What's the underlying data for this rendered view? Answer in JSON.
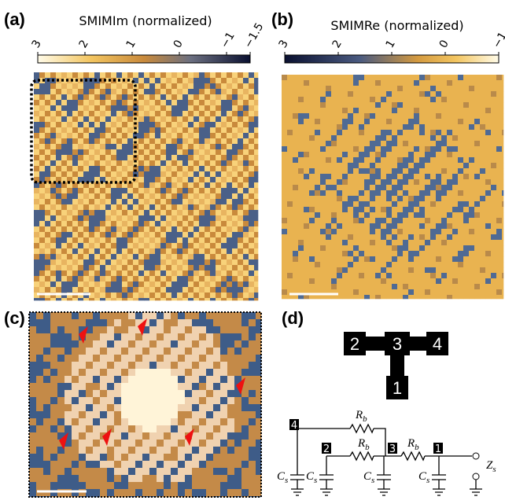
{
  "panels": {
    "a": {
      "label": "(a)",
      "colorbar": {
        "title": "SMIMIm (normalized)",
        "range": [
          3,
          -1.5
        ],
        "ticks": [
          3,
          2,
          1,
          0,
          {
            "value": -1,
            "label": "−1"
          },
          {
            "value": -1.5,
            "label": "−1.5"
          }
        ]
      }
    },
    "b": {
      "label": "(b)",
      "colorbar": {
        "title": "SMIMRe (normalized)",
        "range": [
          3,
          -1
        ],
        "ticks": [
          3,
          2,
          1,
          0,
          {
            "value": -1,
            "label": "−1"
          }
        ]
      }
    },
    "c": {
      "label": "(c)"
    },
    "d": {
      "label": "(d)",
      "graph_nodes": [
        "2",
        "3",
        "4",
        "1"
      ],
      "circuit": {
        "node_labels": [
          "4",
          "2",
          "3",
          "1"
        ],
        "resistor": {
          "symbol": "R",
          "subscript": "b"
        },
        "capacitor": {
          "symbol": "C",
          "subscript": "s"
        },
        "impedance": {
          "symbol": "Z",
          "subscript": "s"
        }
      }
    }
  }
}
